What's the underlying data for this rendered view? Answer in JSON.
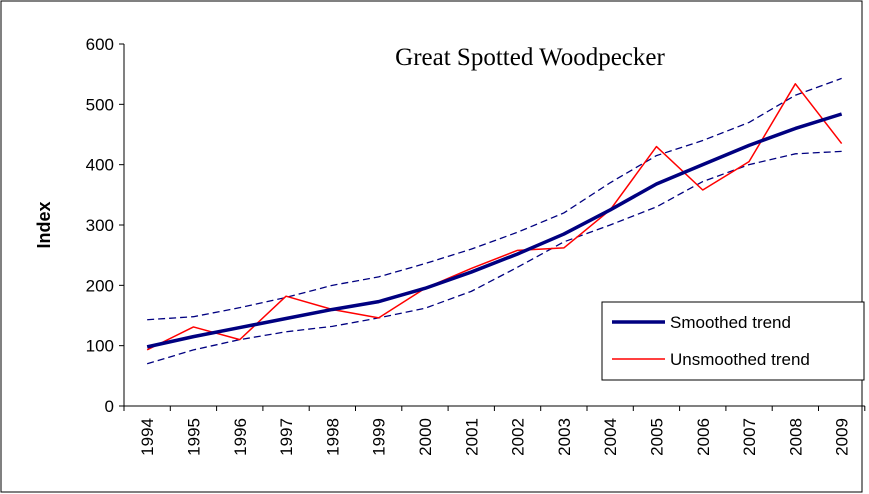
{
  "chart_data": {
    "type": "line",
    "title": "Great Spotted Woodpecker",
    "y_label": "Index",
    "categories": [
      "1994",
      "1995",
      "1996",
      "1997",
      "1998",
      "1999",
      "2000",
      "2001",
      "2002",
      "2003",
      "2004",
      "2005",
      "2006",
      "2007",
      "2008",
      "2009"
    ],
    "series": [
      {
        "name": "Smoothed trend",
        "color": "#000080",
        "width": 3.5,
        "values": [
          98,
          115,
          130,
          145,
          160,
          173,
          195,
          222,
          252,
          285,
          325,
          368,
          400,
          432,
          460,
          484
        ]
      },
      {
        "name": "Unsmoothed trend",
        "color": "#ff0000",
        "width": 1.5,
        "values": [
          93,
          131,
          110,
          182,
          160,
          146,
          195,
          228,
          258,
          262,
          325,
          430,
          358,
          405,
          534,
          435
        ]
      },
      {
        "color": "#000080",
        "width": 1.3,
        "dash": true,
        "values": [
          143,
          148,
          163,
          180,
          200,
          214,
          236,
          260,
          288,
          320,
          370,
          415,
          440,
          470,
          515,
          543
        ]
      },
      {
        "color": "#000080",
        "width": 1.3,
        "dash": true,
        "values": [
          70,
          93,
          110,
          123,
          132,
          146,
          162,
          190,
          230,
          272,
          300,
          330,
          372,
          400,
          418,
          422
        ]
      }
    ],
    "ylim": [
      0,
      600
    ],
    "yticks": [
      0,
      100,
      200,
      300,
      400,
      500,
      600
    ],
    "grid": false,
    "legend": "right"
  }
}
